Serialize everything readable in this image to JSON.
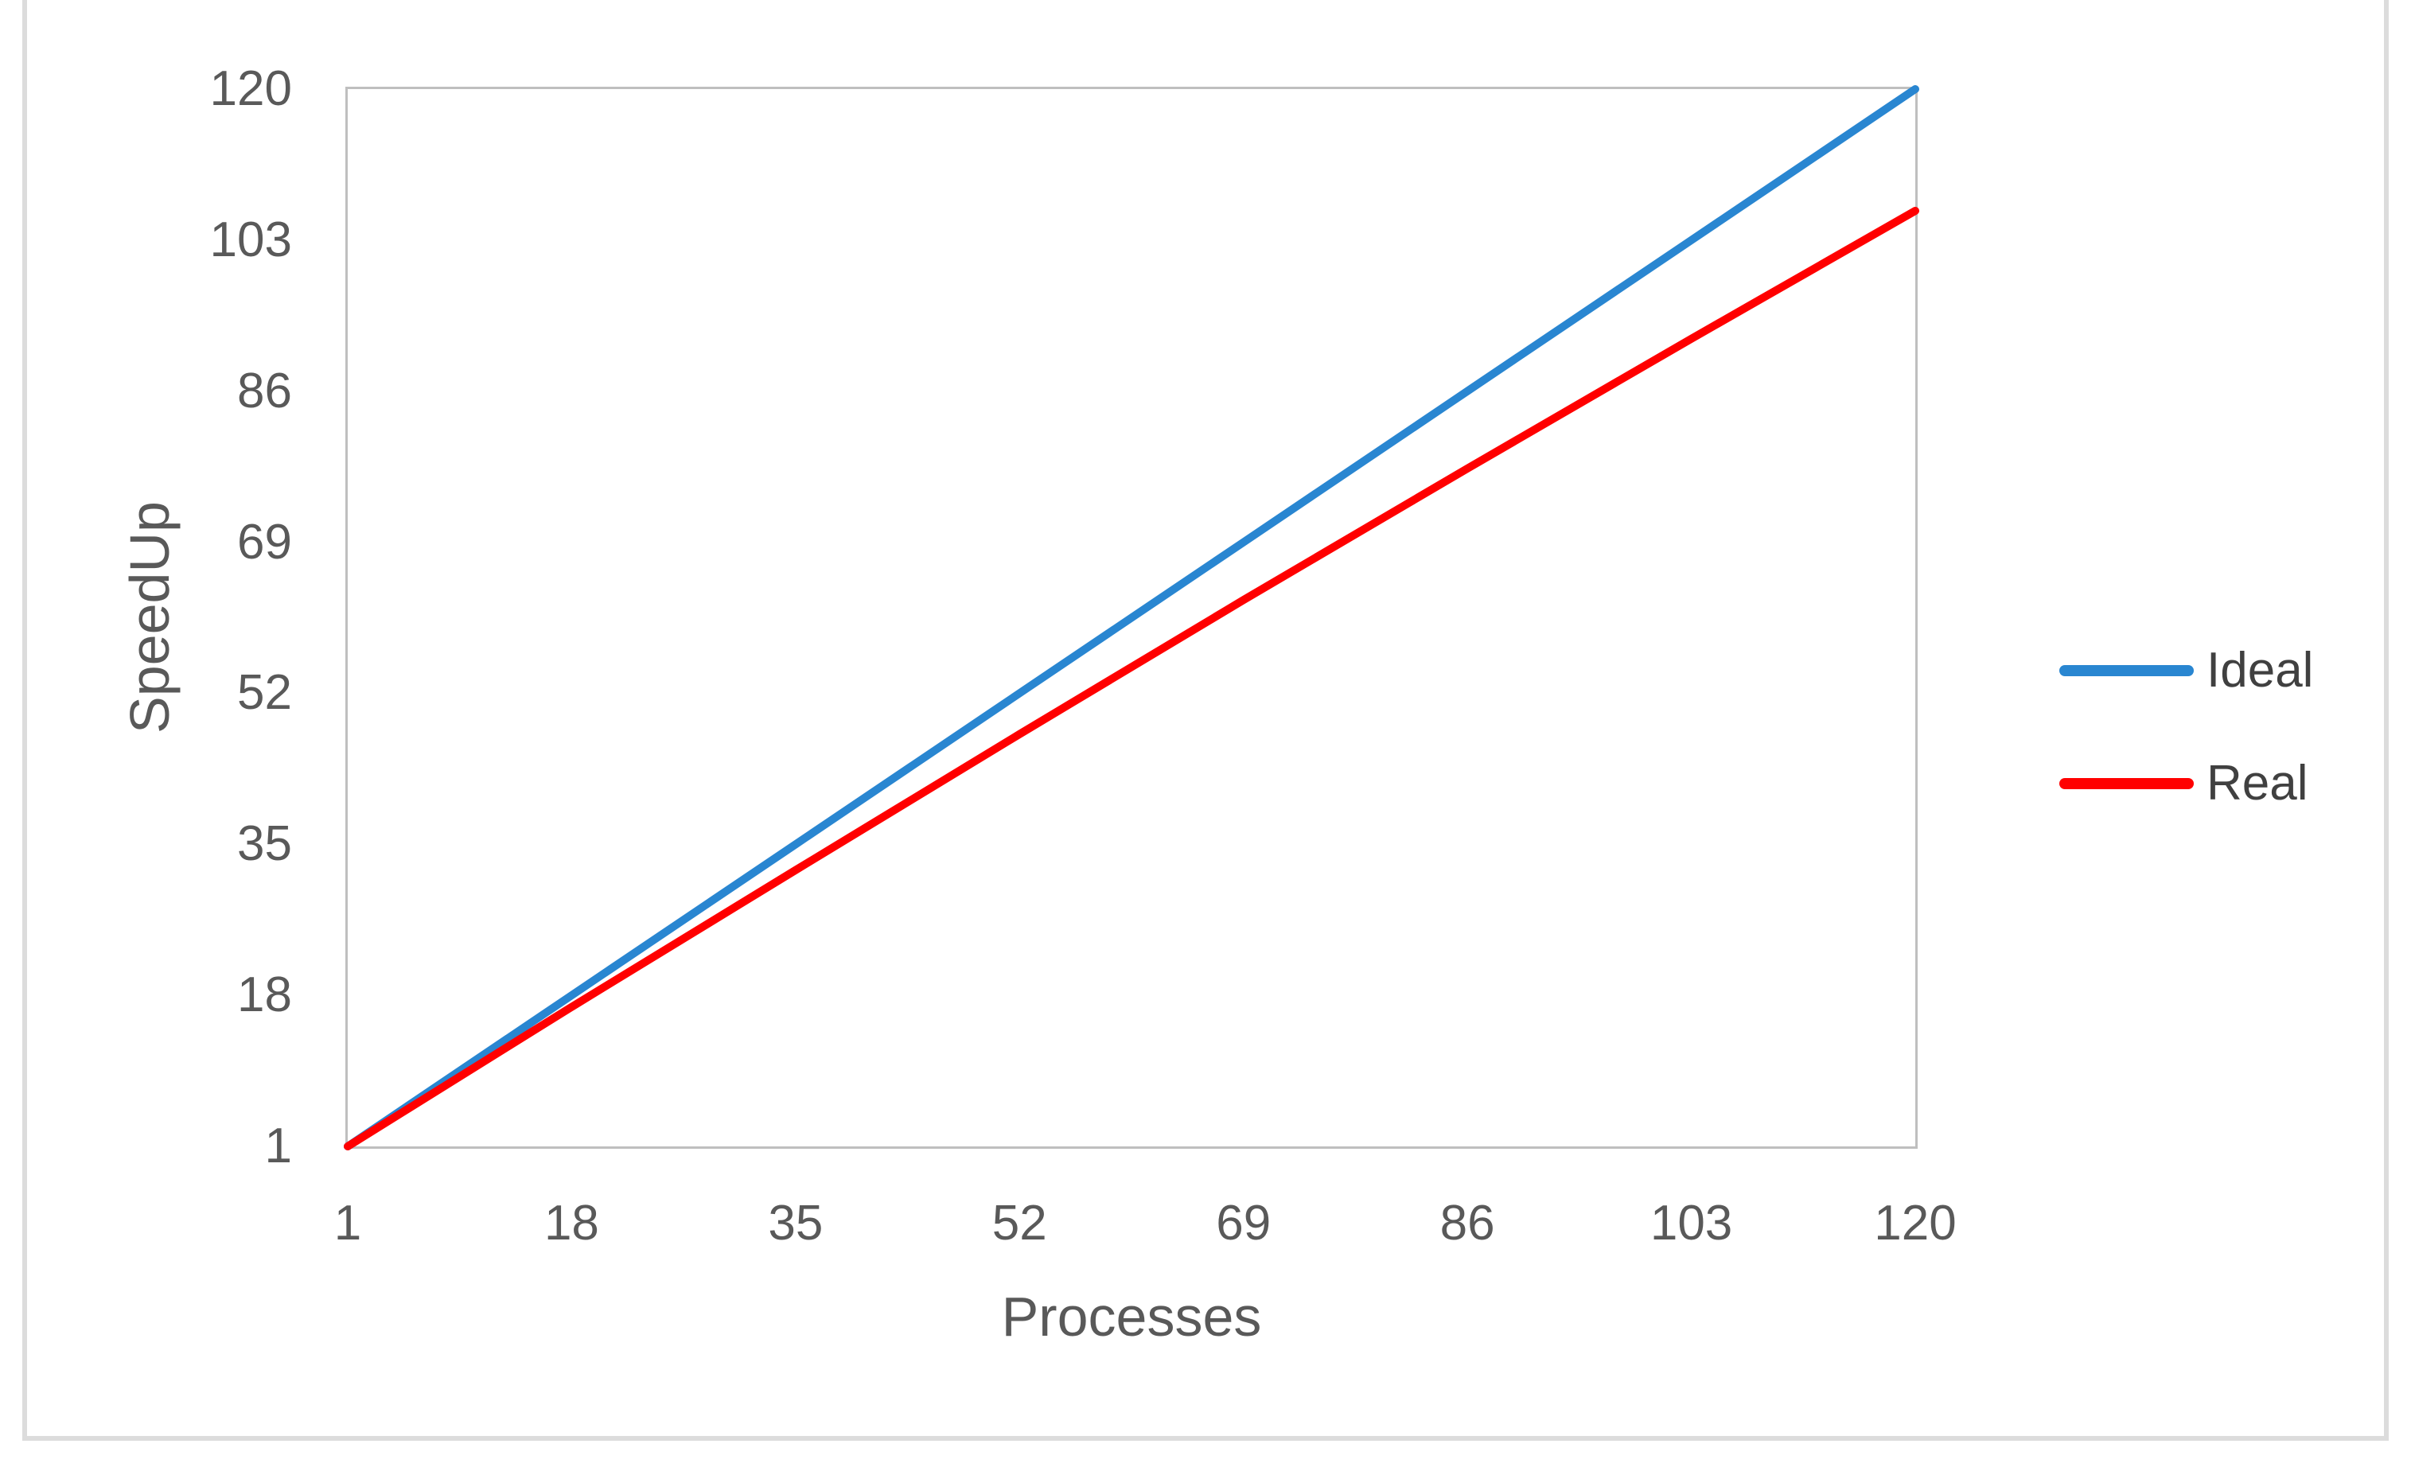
{
  "chart": {
    "y_axis_title": "SpeedUp",
    "x_axis_title": "Processes",
    "legend_items": [
      {
        "label": "Ideal"
      },
      {
        "label": "Real"
      }
    ]
  },
  "chart_data": {
    "type": "line",
    "title": "",
    "xlabel": "Processes",
    "ylabel": "SpeedUp",
    "xlim": [
      1,
      120
    ],
    "ylim": [
      1,
      120
    ],
    "x_ticks": [
      1,
      18,
      35,
      52,
      69,
      86,
      103,
      120
    ],
    "y_ticks": [
      1,
      18,
      35,
      52,
      69,
      86,
      103,
      120
    ],
    "grid": false,
    "legend_position": "center-right",
    "series": [
      {
        "name": "Ideal",
        "color": "#2986D1",
        "x": [
          1,
          18,
          35,
          52,
          69,
          86,
          103,
          120
        ],
        "y": [
          1,
          18,
          35,
          52,
          69,
          86,
          103,
          120
        ]
      },
      {
        "name": "Real",
        "color": "#FF0000",
        "x": [
          1,
          18,
          35,
          52,
          69,
          86,
          103,
          120
        ],
        "y": [
          1,
          16.7,
          32.1,
          47.4,
          62.5,
          77.3,
          91.9,
          106.3
        ]
      }
    ]
  },
  "colors": {
    "plot_border": "#BFBFBF",
    "frame_border": "#DCDCDC",
    "tick_text": "#595959",
    "background": "#FFFFFF"
  }
}
